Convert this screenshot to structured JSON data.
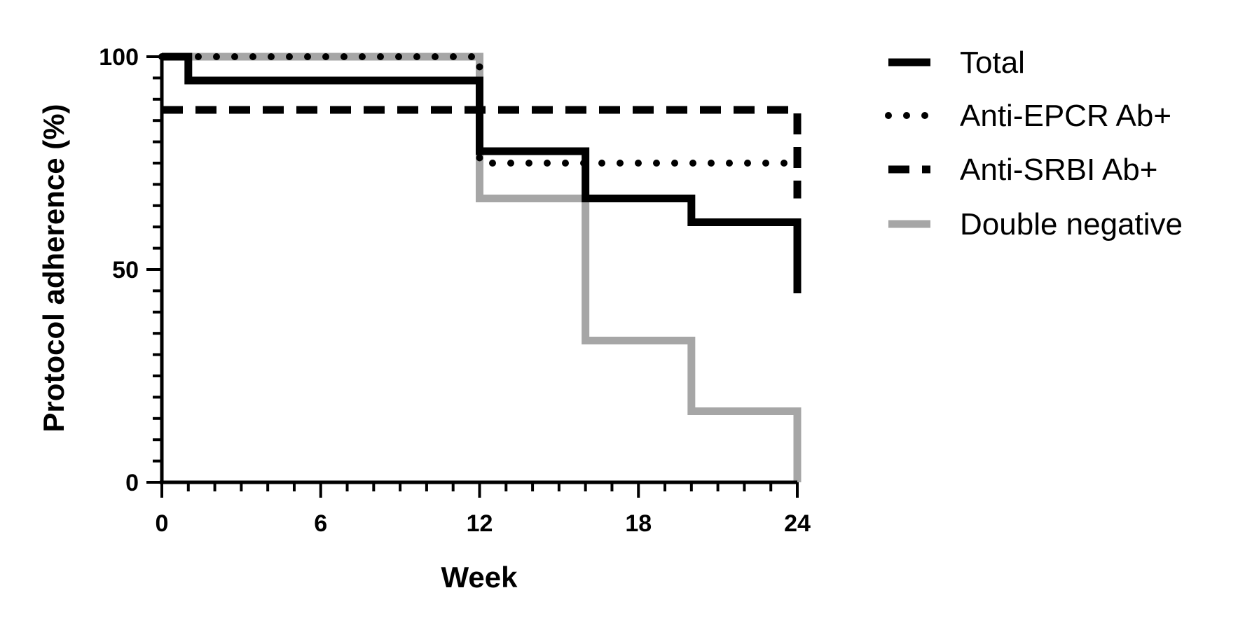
{
  "chart_data": {
    "type": "line",
    "step": true,
    "xlabel": "Week",
    "ylabel": "Protocol adherence (%)",
    "xlim": [
      0,
      24
    ],
    "ylim": [
      0,
      100
    ],
    "x_ticks": [
      0,
      6,
      12,
      18,
      24
    ],
    "x_ticks_labels": [
      "0",
      "6",
      "12",
      "18",
      "24"
    ],
    "y_ticks": [
      0,
      50,
      100
    ],
    "y_ticks_labels": [
      "0",
      "50",
      "100"
    ],
    "x_minor_step": 1,
    "y_minor_step": 5,
    "grid": false,
    "legend_position": "right",
    "series": [
      {
        "name": "Total",
        "style": "solid",
        "color": "#000000",
        "x": [
          0,
          1,
          12,
          16,
          20,
          24
        ],
        "y": [
          100,
          94.4,
          77.8,
          66.7,
          61.1,
          44.4
        ]
      },
      {
        "name": "Anti-EPCR Ab+",
        "style": "dotted",
        "color": "#000000",
        "x": [
          0,
          12,
          24
        ],
        "y": [
          100,
          75,
          75
        ]
      },
      {
        "name": "Anti-SRBI Ab+",
        "style": "dashed",
        "color": "#000000",
        "x": [
          0,
          24
        ],
        "y": [
          87.5,
          66.7
        ]
      },
      {
        "name": "Double negative",
        "style": "solid",
        "color": "#a6a6a6",
        "x": [
          0,
          12,
          16,
          20,
          24
        ],
        "y": [
          100,
          66.7,
          33.3,
          16.7,
          0
        ]
      }
    ]
  }
}
